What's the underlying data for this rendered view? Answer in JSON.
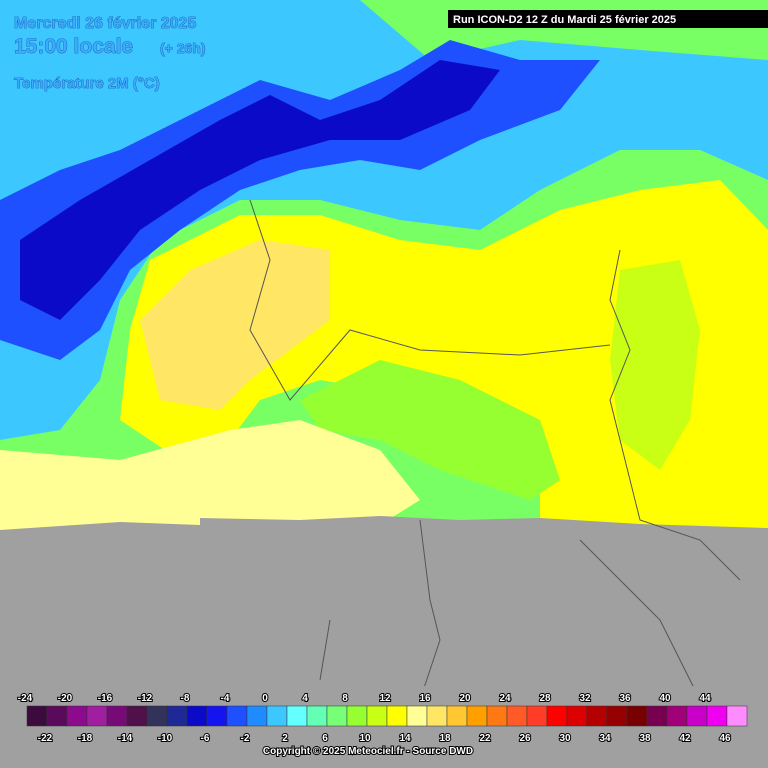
{
  "header": {
    "date": "Mercredi 26 février 2025",
    "time": "15:00 locale",
    "lead": "(+ 26h)",
    "parameter": "Température 2M (°C)",
    "run": "Run ICON-D2 12 Z du Mardi 25 février 2025"
  },
  "legend": {
    "stops": [
      {
        "value": -24,
        "color": "#3c0a3c"
      },
      {
        "value": -22,
        "color": "#5a0a5a"
      },
      {
        "value": -20,
        "color": "#8c0a8c"
      },
      {
        "value": -18,
        "color": "#a01ea0"
      },
      {
        "value": -16,
        "color": "#780a78"
      },
      {
        "value": -14,
        "color": "#50104a"
      },
      {
        "value": -12,
        "color": "#32325a"
      },
      {
        "value": -10,
        "color": "#1e2896"
      },
      {
        "value": -8,
        "color": "#0a0ac8"
      },
      {
        "value": -6,
        "color": "#1414f0"
      },
      {
        "value": -4,
        "color": "#1e50ff"
      },
      {
        "value": -2,
        "color": "#1e8cff"
      },
      {
        "value": 0,
        "color": "#3cc8ff"
      },
      {
        "value": 2,
        "color": "#64ffff"
      },
      {
        "value": 4,
        "color": "#64ffb4"
      },
      {
        "value": 6,
        "color": "#78ff78"
      },
      {
        "value": 8,
        "color": "#96ff32"
      },
      {
        "value": 10,
        "color": "#c8ff14"
      },
      {
        "value": 12,
        "color": "#ffff00"
      },
      {
        "value": 14,
        "color": "#ffff96"
      },
      {
        "value": 16,
        "color": "#ffe664"
      },
      {
        "value": 18,
        "color": "#ffc832"
      },
      {
        "value": 20,
        "color": "#ffa000"
      },
      {
        "value": 22,
        "color": "#ff7814"
      },
      {
        "value": 24,
        "color": "#ff5a28"
      },
      {
        "value": 26,
        "color": "#ff3c28"
      },
      {
        "value": 28,
        "color": "#ff0000"
      },
      {
        "value": 30,
        "color": "#dc0000"
      },
      {
        "value": 32,
        "color": "#b40000"
      },
      {
        "value": 34,
        "color": "#960000"
      },
      {
        "value": 36,
        "color": "#780000"
      },
      {
        "value": 38,
        "color": "#780050"
      },
      {
        "value": 40,
        "color": "#a00078"
      },
      {
        "value": 42,
        "color": "#c800c8"
      },
      {
        "value": 44,
        "color": "#f000f0"
      },
      {
        "value": 46,
        "color": "#ff8cff"
      }
    ]
  },
  "footer": {
    "copyright": "Copyright © 2025 Meteociel.fr - Source DWD"
  }
}
